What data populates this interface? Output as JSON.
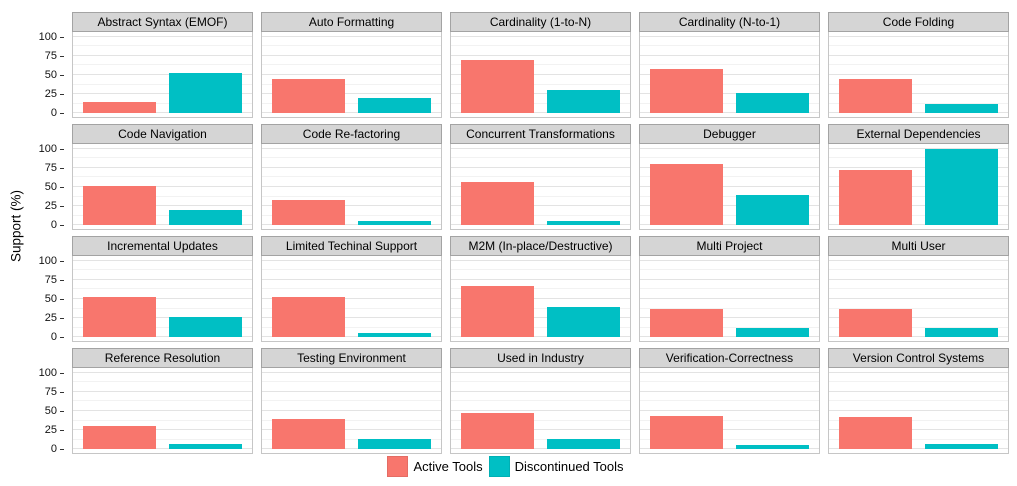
{
  "chart_data": {
    "type": "bar",
    "title": "",
    "xlabel": "",
    "ylabel": "Support (%)",
    "ylim": [
      0,
      100
    ],
    "yticks": [
      0,
      25,
      50,
      75,
      100
    ],
    "grid": true,
    "legend_position": "bottom",
    "facet_columns": 5,
    "series_names": [
      "Active Tools",
      "Discontinued Tools"
    ],
    "legend": [
      {
        "name": "Active Tools",
        "color": "#F8766D"
      },
      {
        "name": "Discontinued Tools",
        "color": "#00BFC4"
      }
    ],
    "facets": [
      {
        "title": "Abstract Syntax (EMOF)",
        "values": [
          15,
          53
        ]
      },
      {
        "title": "Auto Formatting",
        "values": [
          45,
          20
        ]
      },
      {
        "title": "Cardinality (1-to-N)",
        "values": [
          70,
          31
        ]
      },
      {
        "title": "Cardinality (N-to-1)",
        "values": [
          58,
          27
        ]
      },
      {
        "title": "Code Folding",
        "values": [
          45,
          12
        ]
      },
      {
        "title": "Code Navigation",
        "values": [
          51,
          20
        ]
      },
      {
        "title": "Code Re-factoring",
        "values": [
          33,
          6
        ]
      },
      {
        "title": "Concurrent Transformations",
        "values": [
          57,
          6
        ]
      },
      {
        "title": "Debugger",
        "values": [
          80,
          40
        ]
      },
      {
        "title": "External Dependencies",
        "values": [
          72,
          100
        ]
      },
      {
        "title": "Incremental Updates",
        "values": [
          53,
          26
        ]
      },
      {
        "title": "Limited Techinal Support",
        "values": [
          53,
          6
        ]
      },
      {
        "title": "M2M (In-place/Destructive)",
        "values": [
          67,
          39
        ]
      },
      {
        "title": "Multi Project",
        "values": [
          37,
          12
        ]
      },
      {
        "title": "Multi User",
        "values": [
          37,
          12
        ]
      },
      {
        "title": "Reference Resolution",
        "values": [
          30,
          7
        ]
      },
      {
        "title": "Testing Environment",
        "values": [
          40,
          13
        ]
      },
      {
        "title": "Used in Industry",
        "values": [
          47,
          13
        ]
      },
      {
        "title": "Verification-Correctness",
        "values": [
          44,
          6
        ]
      },
      {
        "title": "Version Control Systems",
        "values": [
          42,
          7
        ]
      }
    ]
  },
  "colors": {
    "active": "#F8766D",
    "discontinued": "#00BFC4",
    "strip_bg": "#D5D5D5",
    "strip_border": "#A3A3A3",
    "panel_border": "#C6C6C6",
    "grid_major": "#E3E3E3",
    "grid_minor": "#F2F2F2",
    "background": "#FFFFFF"
  }
}
